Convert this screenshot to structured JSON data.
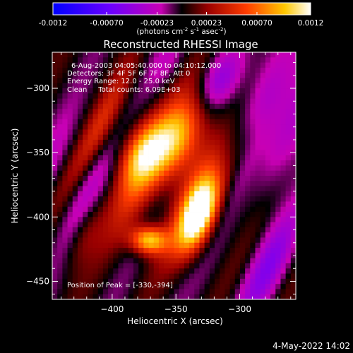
{
  "chart_data": {
    "type": "heatmap",
    "title": "Reconstructed RHESSI Image",
    "xlabel": "Heliocentric X (arcsec)",
    "ylabel": "Heliocentric Y (arcsec)",
    "xlim": [
      -447,
      -390
    ],
    "ylim": [
      -464,
      -272
    ],
    "xlim_full": [
      -447,
      -256
    ],
    "x_ticks": [
      -400,
      -350,
      -300
    ],
    "y_ticks": [
      -300,
      -350,
      -400,
      -450
    ],
    "colorbar": {
      "label_parts": [
        "(photons cm",
        "-2",
        " s",
        "-1",
        " asec",
        "-2",
        ")"
      ],
      "ticks": [
        "-0.0012",
        "-0.00070",
        "-0.00023",
        "0.00023",
        "0.00070",
        "0.0012"
      ],
      "tick_values": [
        -0.0012,
        -0.0007,
        -0.00023,
        0.00023,
        0.0007,
        0.0012
      ],
      "range": [
        -0.0012,
        0.0012
      ]
    },
    "info_lines": [
      "6-Aug-2003 04:05:40.000 to 04:10:12.000",
      "Detectors: 3F 4F 5F 6F 7F 8F, Att 0",
      "Energy Range: 12.0 - 25.0 keV",
      "Clean     Total counts: 6.09E+03"
    ],
    "peak_text": "Position of Peak = [-330,-394]",
    "peak": [
      -330,
      -394
    ],
    "timestamp": "4-May-2022 14:02"
  }
}
